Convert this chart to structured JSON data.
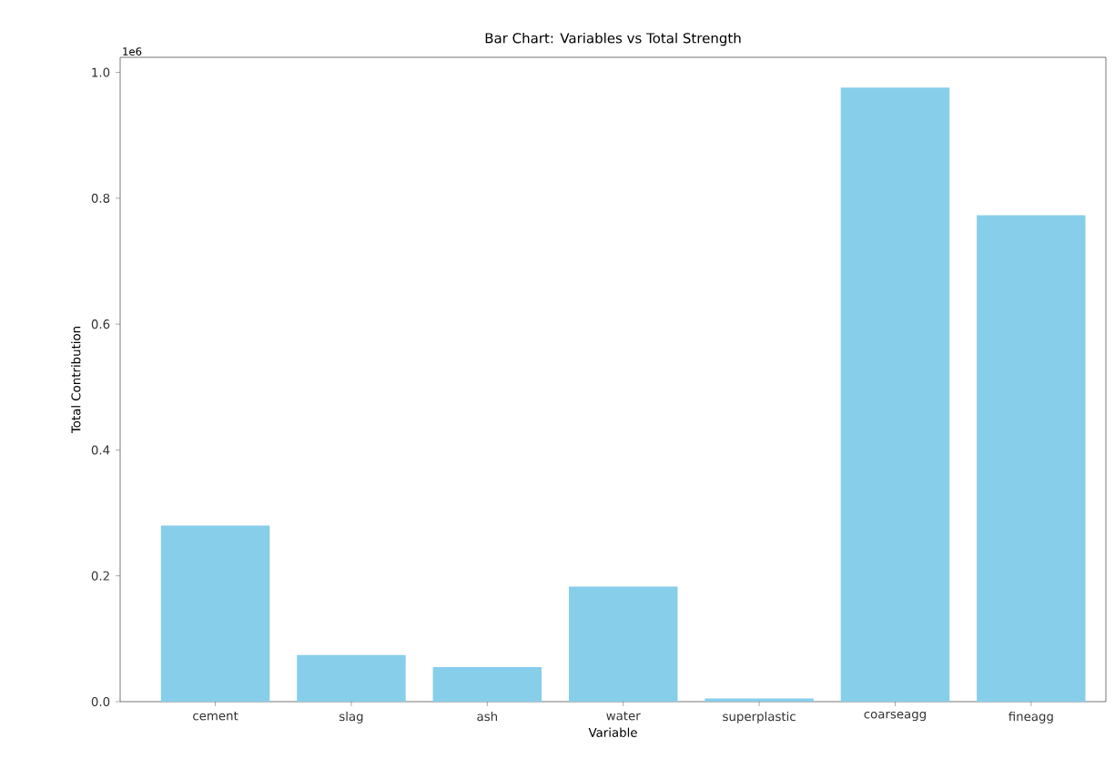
{
  "chart_data": {
    "type": "bar",
    "title": "Bar Chart: Variables vs Total Strength",
    "xlabel": "Variable",
    "ylabel": "Total Contribution",
    "categories": [
      "cement",
      "slag",
      "ash",
      "water",
      "superplastic",
      "coarseagg",
      "fineagg"
    ],
    "values": [
      0.28,
      0.074,
      0.055,
      0.183,
      0.005,
      0.976,
      0.773
    ],
    "color": "#87ceeb",
    "ylim": [
      0,
      1.024
    ],
    "yticks": [
      {
        "value": 0,
        "label": "0.0"
      },
      0.2,
      0.4,
      0.6,
      0.8,
      {
        "value": 1.0,
        "label": "1.0"
      }
    ],
    "annotations": [
      "1e6"
    ],
    "grid": false
  }
}
